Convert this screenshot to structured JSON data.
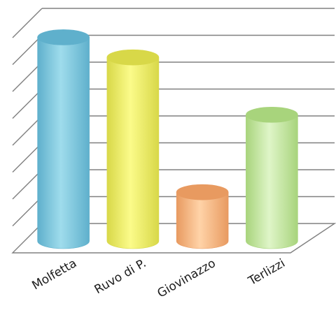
{
  "header": {
    "partial_title": ""
  },
  "chart_data": {
    "type": "bar",
    "style": "3d-cylinder",
    "title": "",
    "xlabel": "",
    "ylabel": "",
    "categories": [
      "Molfetta",
      "Ruvo di P.",
      "Giovinazzo",
      "Terlizzi"
    ],
    "values": [
      71,
      64,
      17,
      44
    ],
    "ylim": [
      0,
      75
    ],
    "gridlines": 8,
    "grid": true,
    "legend": "none",
    "colors": {
      "Molfetta": [
        "#5fb0cc",
        "#9fdcec"
      ],
      "Ruvo di P.": [
        "#d8d848",
        "#fbfb8a"
      ],
      "Giovinazzo": [
        "#e89a60",
        "#ffd3a8"
      ],
      "Terlizzi": [
        "#a8d47c",
        "#dff5c8"
      ]
    },
    "grid_color": "#808080"
  }
}
